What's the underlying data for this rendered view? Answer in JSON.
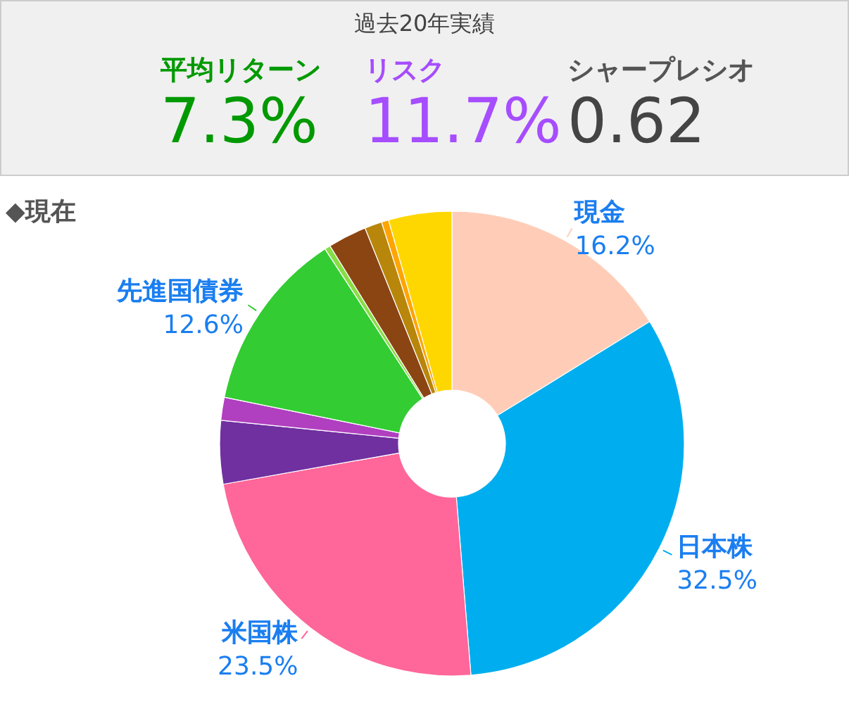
{
  "chart_data": [
    {
      "type": "other",
      "title": "過去20年実績",
      "annotations": [
        "平均リターン",
        "7.3%",
        "リスク",
        "11.7%",
        "シャープレシオ",
        "0.62"
      ]
    },
    {
      "type": "donut",
      "title": "◆現在",
      "categories": [
        "現金",
        "日本株",
        "米国株",
        null,
        null,
        "先進国債券",
        null,
        null,
        null,
        null,
        null
      ],
      "values": [
        16.2,
        32.5,
        23.5,
        4.4,
        1.6,
        12.6,
        0.4,
        2.7,
        1.2,
        0.5,
        4.4
      ],
      "value_labels": [
        "16.2%",
        "32.5%",
        "23.5%",
        null,
        null,
        "12.6%",
        null,
        null,
        null,
        null,
        null
      ],
      "colors": [
        "#ffcdb7",
        "#00aeef",
        "#ff6699",
        "#7030a0",
        "#b040c0",
        "#33cc33",
        "#88dd44",
        "#8b4513",
        "#b8860b",
        "#ffa500",
        "#ffd700"
      ]
    }
  ]
}
